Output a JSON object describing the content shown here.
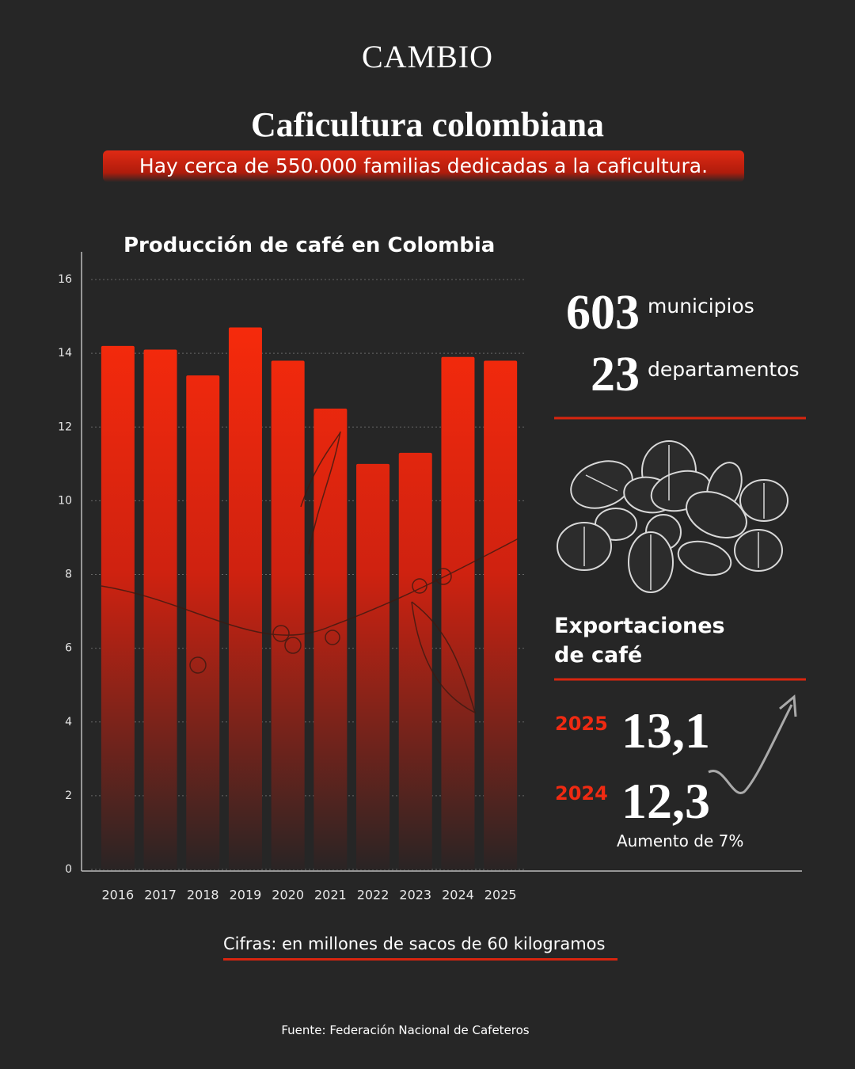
{
  "brand": "CAMBIO",
  "header": {
    "title": "Caficultura colombiana",
    "subtitle": "Hay cerca de 550.000 familias dedicadas a la caficultura."
  },
  "chart_data": {
    "type": "bar",
    "title": "Producción de café en Colombia",
    "categories": [
      "2016",
      "2017",
      "2018",
      "2019",
      "2020",
      "2021",
      "2022",
      "2023",
      "2024",
      "2025"
    ],
    "values": [
      14.2,
      14.1,
      13.4,
      14.7,
      13.8,
      12.5,
      11.0,
      11.3,
      13.9,
      13.8
    ],
    "color": "#f52a0c",
    "ylim": [
      0,
      16
    ],
    "yticks": [
      0,
      2,
      4,
      6,
      8,
      10,
      12,
      14,
      16
    ],
    "grid": true,
    "note": "Cifras: en millones de sacos de 60 kilogramos"
  },
  "stats": [
    {
      "number": "603",
      "label": "municipios"
    },
    {
      "number": "23",
      "label": "departamentos"
    }
  ],
  "exports": {
    "title": "Exportaciones de café",
    "rows": [
      {
        "year": "2025",
        "value": "13,1"
      },
      {
        "year": "2024",
        "value": "12,3"
      }
    ],
    "change": "Aumento de 7%"
  },
  "source": "Fuente: Federación Nacional de Cafeteros"
}
